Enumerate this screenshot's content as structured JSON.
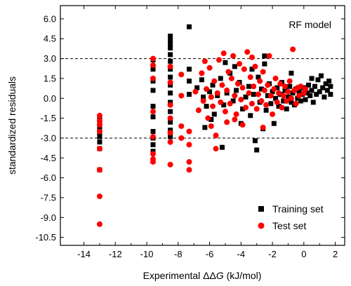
{
  "chart_data": {
    "type": "scatter",
    "xlabel_prefix": "Experimental ",
    "xlabel_symbol": "ΔΔ",
    "xlabel_var": "G",
    "xlabel_unit": " (kJ/mol)",
    "ylabel": "standardized residuals",
    "annotation": "RF model",
    "xlim": [
      -15.5,
      2.6
    ],
    "ylim": [
      -11.1,
      7.0
    ],
    "x_ticks": [
      -14,
      -12,
      -10,
      -8,
      -6,
      -4,
      -2,
      0,
      2
    ],
    "x_tick_labels": [
      "-14",
      "-12",
      "-10",
      "-8",
      "-6",
      "-4",
      "-2",
      "0",
      "2"
    ],
    "y_ticks": [
      6.0,
      4.5,
      3.0,
      1.5,
      0.0,
      -1.5,
      -3.0,
      -4.5,
      -6.0,
      -7.5,
      -9.0,
      -10.5
    ],
    "y_tick_labels": [
      "6.0",
      "4.5",
      "3.0",
      "1.5",
      "0.0",
      "-1.5",
      "-3.0",
      "-4.5",
      "-6.0",
      "-7.5",
      "-9.0",
      "-10.5"
    ],
    "reference_lines": [
      3.0,
      -3.0
    ],
    "grid": false,
    "legend_position": "bottom-right",
    "colors": {
      "training": "#000000",
      "test": "#ff0000"
    },
    "series": [
      {
        "name": "Training set",
        "marker": "square",
        "points": [
          [
            -13.0,
            -1.5
          ],
          [
            -13.0,
            -1.8
          ],
          [
            -13.0,
            -2.2
          ],
          [
            -13.0,
            -2.6
          ],
          [
            -13.0,
            -2.9
          ],
          [
            -13.0,
            -3.3
          ],
          [
            -13.0,
            -3.8
          ],
          [
            -13.0,
            -5.4
          ],
          [
            -9.6,
            2.9
          ],
          [
            -9.6,
            2.2
          ],
          [
            -9.6,
            1.3
          ],
          [
            -9.6,
            0.6
          ],
          [
            -9.6,
            -0.6
          ],
          [
            -9.6,
            -1.4
          ],
          [
            -9.6,
            -2.5
          ],
          [
            -9.6,
            -3.0
          ],
          [
            -9.6,
            -3.5
          ],
          [
            -9.6,
            -4.0
          ],
          [
            -8.5,
            4.7
          ],
          [
            -8.5,
            4.4
          ],
          [
            -8.5,
            4.1
          ],
          [
            -8.5,
            3.8
          ],
          [
            -8.5,
            3.3
          ],
          [
            -8.5,
            2.8
          ],
          [
            -8.5,
            2.2
          ],
          [
            -8.5,
            1.6
          ],
          [
            -8.5,
            1.0
          ],
          [
            -8.5,
            0.4
          ],
          [
            -8.5,
            -0.3
          ],
          [
            -8.5,
            -1.0
          ],
          [
            -8.5,
            -1.8
          ],
          [
            -8.5,
            -2.4
          ],
          [
            -8.5,
            -2.9
          ],
          [
            -7.3,
            5.4
          ],
          [
            -7.3,
            2.2
          ],
          [
            -7.3,
            1.3
          ],
          [
            -7.3,
            0.3
          ],
          [
            -6.8,
            0.8
          ],
          [
            -6.5,
            1.4
          ],
          [
            -6.4,
            0.1
          ],
          [
            -6.2,
            -0.6
          ],
          [
            -6.0,
            0.5
          ],
          [
            -5.8,
            1.0
          ],
          [
            -5.7,
            -1.2
          ],
          [
            -5.5,
            0.2
          ],
          [
            -5.3,
            1.5
          ],
          [
            -5.1,
            -0.5
          ],
          [
            -4.9,
            0.4
          ],
          [
            -4.7,
            1.9
          ],
          [
            -4.5,
            -0.2
          ],
          [
            -4.3,
            0.6
          ],
          [
            -4.1,
            1.2
          ],
          [
            -3.9,
            -0.8
          ],
          [
            -3.7,
            0.1
          ],
          [
            -3.5,
            0.9
          ],
          [
            -3.4,
            -1.3
          ],
          [
            -3.2,
            0.3
          ],
          [
            -3.1,
            -3.2
          ],
          [
            -3.0,
            -3.9
          ],
          [
            -2.9,
            1.6
          ],
          [
            -2.8,
            -0.3
          ],
          [
            -2.7,
            0.7
          ],
          [
            -2.5,
            3.2
          ],
          [
            -2.5,
            2.6
          ],
          [
            -2.4,
            -0.9
          ],
          [
            -2.3,
            0.2
          ],
          [
            -2.2,
            1.1
          ],
          [
            -2.1,
            -0.4
          ],
          [
            -2.0,
            0.5
          ],
          [
            -1.9,
            -1.9
          ],
          [
            -1.8,
            0.0
          ],
          [
            -1.7,
            0.8
          ],
          [
            -1.6,
            -0.6
          ],
          [
            -1.5,
            0.3
          ],
          [
            -1.4,
            1.2
          ],
          [
            -1.3,
            -0.2
          ],
          [
            -1.2,
            0.6
          ],
          [
            -1.1,
            -0.8
          ],
          [
            -1.0,
            0.1
          ],
          [
            -0.9,
            0.9
          ],
          [
            -0.8,
            -0.3
          ],
          [
            -0.7,
            0.4
          ],
          [
            -0.6,
            -0.5
          ],
          [
            -0.5,
            0.7
          ],
          [
            -0.4,
            0.0
          ],
          [
            -0.3,
            0.5
          ],
          [
            -0.2,
            -0.2
          ],
          [
            -0.1,
            0.3
          ],
          [
            0.0,
            0.8
          ],
          [
            0.1,
            -0.1
          ],
          [
            0.2,
            0.4
          ],
          [
            0.3,
            1.0
          ],
          [
            0.4,
            0.2
          ],
          [
            0.5,
            0.6
          ],
          [
            0.6,
            -0.3
          ],
          [
            0.7,
            0.9
          ],
          [
            0.8,
            0.3
          ],
          [
            0.9,
            1.4
          ],
          [
            1.0,
            0.5
          ],
          [
            1.1,
            1.7
          ],
          [
            1.2,
            0.8
          ],
          [
            1.3,
            0.1
          ],
          [
            1.4,
            1.1
          ],
          [
            1.5,
            0.6
          ],
          [
            1.6,
            1.3
          ],
          [
            1.7,
            0.9
          ],
          [
            1.7,
            0.3
          ],
          [
            -5.0,
            2.7
          ],
          [
            -4.4,
            2.4
          ],
          [
            -3.3,
            2.2
          ],
          [
            -5.9,
            -1.6
          ],
          [
            -4.0,
            -1.9
          ],
          [
            -2.6,
            -2.3
          ],
          [
            -6.3,
            -2.2
          ],
          [
            -5.2,
            -3.7
          ],
          [
            -0.8,
            1.9
          ],
          [
            0.5,
            1.5
          ]
        ]
      },
      {
        "name": "Test set",
        "marker": "circle",
        "points": [
          [
            -13.0,
            -1.3
          ],
          [
            -13.0,
            -1.7
          ],
          [
            -13.0,
            -2.0
          ],
          [
            -13.0,
            -2.5
          ],
          [
            -13.0,
            -3.8
          ],
          [
            -13.0,
            -5.4
          ],
          [
            -13.0,
            -7.4
          ],
          [
            -13.0,
            -9.5
          ],
          [
            -9.6,
            3.0
          ],
          [
            -9.6,
            2.5
          ],
          [
            -9.6,
            1.5
          ],
          [
            -9.6,
            -1.0
          ],
          [
            -9.6,
            -2.9
          ],
          [
            -9.6,
            -4.2
          ],
          [
            -9.6,
            -4.6
          ],
          [
            -9.6,
            -4.8
          ],
          [
            -8.5,
            2.4
          ],
          [
            -8.5,
            1.2
          ],
          [
            -8.5,
            -0.5
          ],
          [
            -8.5,
            -1.5
          ],
          [
            -8.5,
            -2.6
          ],
          [
            -8.5,
            -3.3
          ],
          [
            -8.5,
            -5.0
          ],
          [
            -7.8,
            1.8
          ],
          [
            -7.8,
            0.2
          ],
          [
            -7.8,
            -2.1
          ],
          [
            -7.8,
            -3.0
          ],
          [
            -7.3,
            -2.5
          ],
          [
            -7.3,
            -3.5
          ],
          [
            -7.3,
            -4.8
          ],
          [
            -7.3,
            -5.4
          ],
          [
            -6.9,
            0.5
          ],
          [
            -6.7,
            -0.9
          ],
          [
            -6.5,
            1.9
          ],
          [
            -6.4,
            -0.2
          ],
          [
            -6.2,
            0.7
          ],
          [
            -6.1,
            -1.5
          ],
          [
            -6.0,
            2.3
          ],
          [
            -5.9,
            0.1
          ],
          [
            -5.8,
            -0.6
          ],
          [
            -5.7,
            1.3
          ],
          [
            -5.6,
            -2.8
          ],
          [
            -5.6,
            -3.8
          ],
          [
            -5.5,
            0.4
          ],
          [
            -5.4,
            2.9
          ],
          [
            -5.3,
            -0.3
          ],
          [
            -5.2,
            1.0
          ],
          [
            -5.1,
            3.4
          ],
          [
            -5.0,
            -1.0
          ],
          [
            -4.9,
            0.6
          ],
          [
            -4.8,
            2.0
          ],
          [
            -4.7,
            -0.4
          ],
          [
            -4.6,
            1.5
          ],
          [
            -4.5,
            3.2
          ],
          [
            -4.4,
            0.2
          ],
          [
            -4.3,
            -1.2
          ],
          [
            -4.2,
            1.1
          ],
          [
            -4.1,
            2.6
          ],
          [
            -4.0,
            -0.1
          ],
          [
            -3.9,
            0.8
          ],
          [
            -3.8,
            2.2
          ],
          [
            -3.7,
            -0.7
          ],
          [
            -3.6,
            3.5
          ],
          [
            -3.5,
            0.4
          ],
          [
            -3.4,
            1.6
          ],
          [
            -3.3,
            -0.4
          ],
          [
            -3.2,
            0.9
          ],
          [
            -3.1,
            2.4
          ],
          [
            -3.0,
            -0.8
          ],
          [
            -2.9,
            0.3
          ],
          [
            -2.8,
            1.3
          ],
          [
            -2.7,
            -0.2
          ],
          [
            -2.6,
            2.0
          ],
          [
            -2.5,
            0.6
          ],
          [
            -2.4,
            -0.5
          ],
          [
            -2.3,
            1.0
          ],
          [
            -2.2,
            3.2
          ],
          [
            -2.1,
            0.2
          ],
          [
            -2.0,
            -1.2
          ],
          [
            -1.9,
            0.7
          ],
          [
            -1.8,
            1.5
          ],
          [
            -1.7,
            -0.3
          ],
          [
            -1.6,
            0.4
          ],
          [
            -1.5,
            1.1
          ],
          [
            -1.4,
            -0.7
          ],
          [
            -1.3,
            0.2
          ],
          [
            -1.2,
            0.9
          ],
          [
            -1.1,
            -0.2
          ],
          [
            -1.0,
            0.5
          ],
          [
            -0.9,
            1.3
          ],
          [
            -0.8,
            0.0
          ],
          [
            -0.7,
            3.7
          ],
          [
            -0.6,
            0.6
          ],
          [
            -0.5,
            -0.4
          ],
          [
            -0.4,
            0.8
          ],
          [
            -0.3,
            0.2
          ],
          [
            -0.2,
            0.9
          ],
          [
            0.0,
            0.4
          ],
          [
            0.1,
            0.7
          ],
          [
            -6.3,
            2.8
          ],
          [
            -4.9,
            -1.8
          ],
          [
            -3.9,
            -2.0
          ],
          [
            -2.6,
            -2.2
          ],
          [
            -5.9,
            -2.1
          ],
          [
            -4.4,
            -1.6
          ],
          [
            -3.3,
            3.1
          ]
        ]
      }
    ]
  }
}
